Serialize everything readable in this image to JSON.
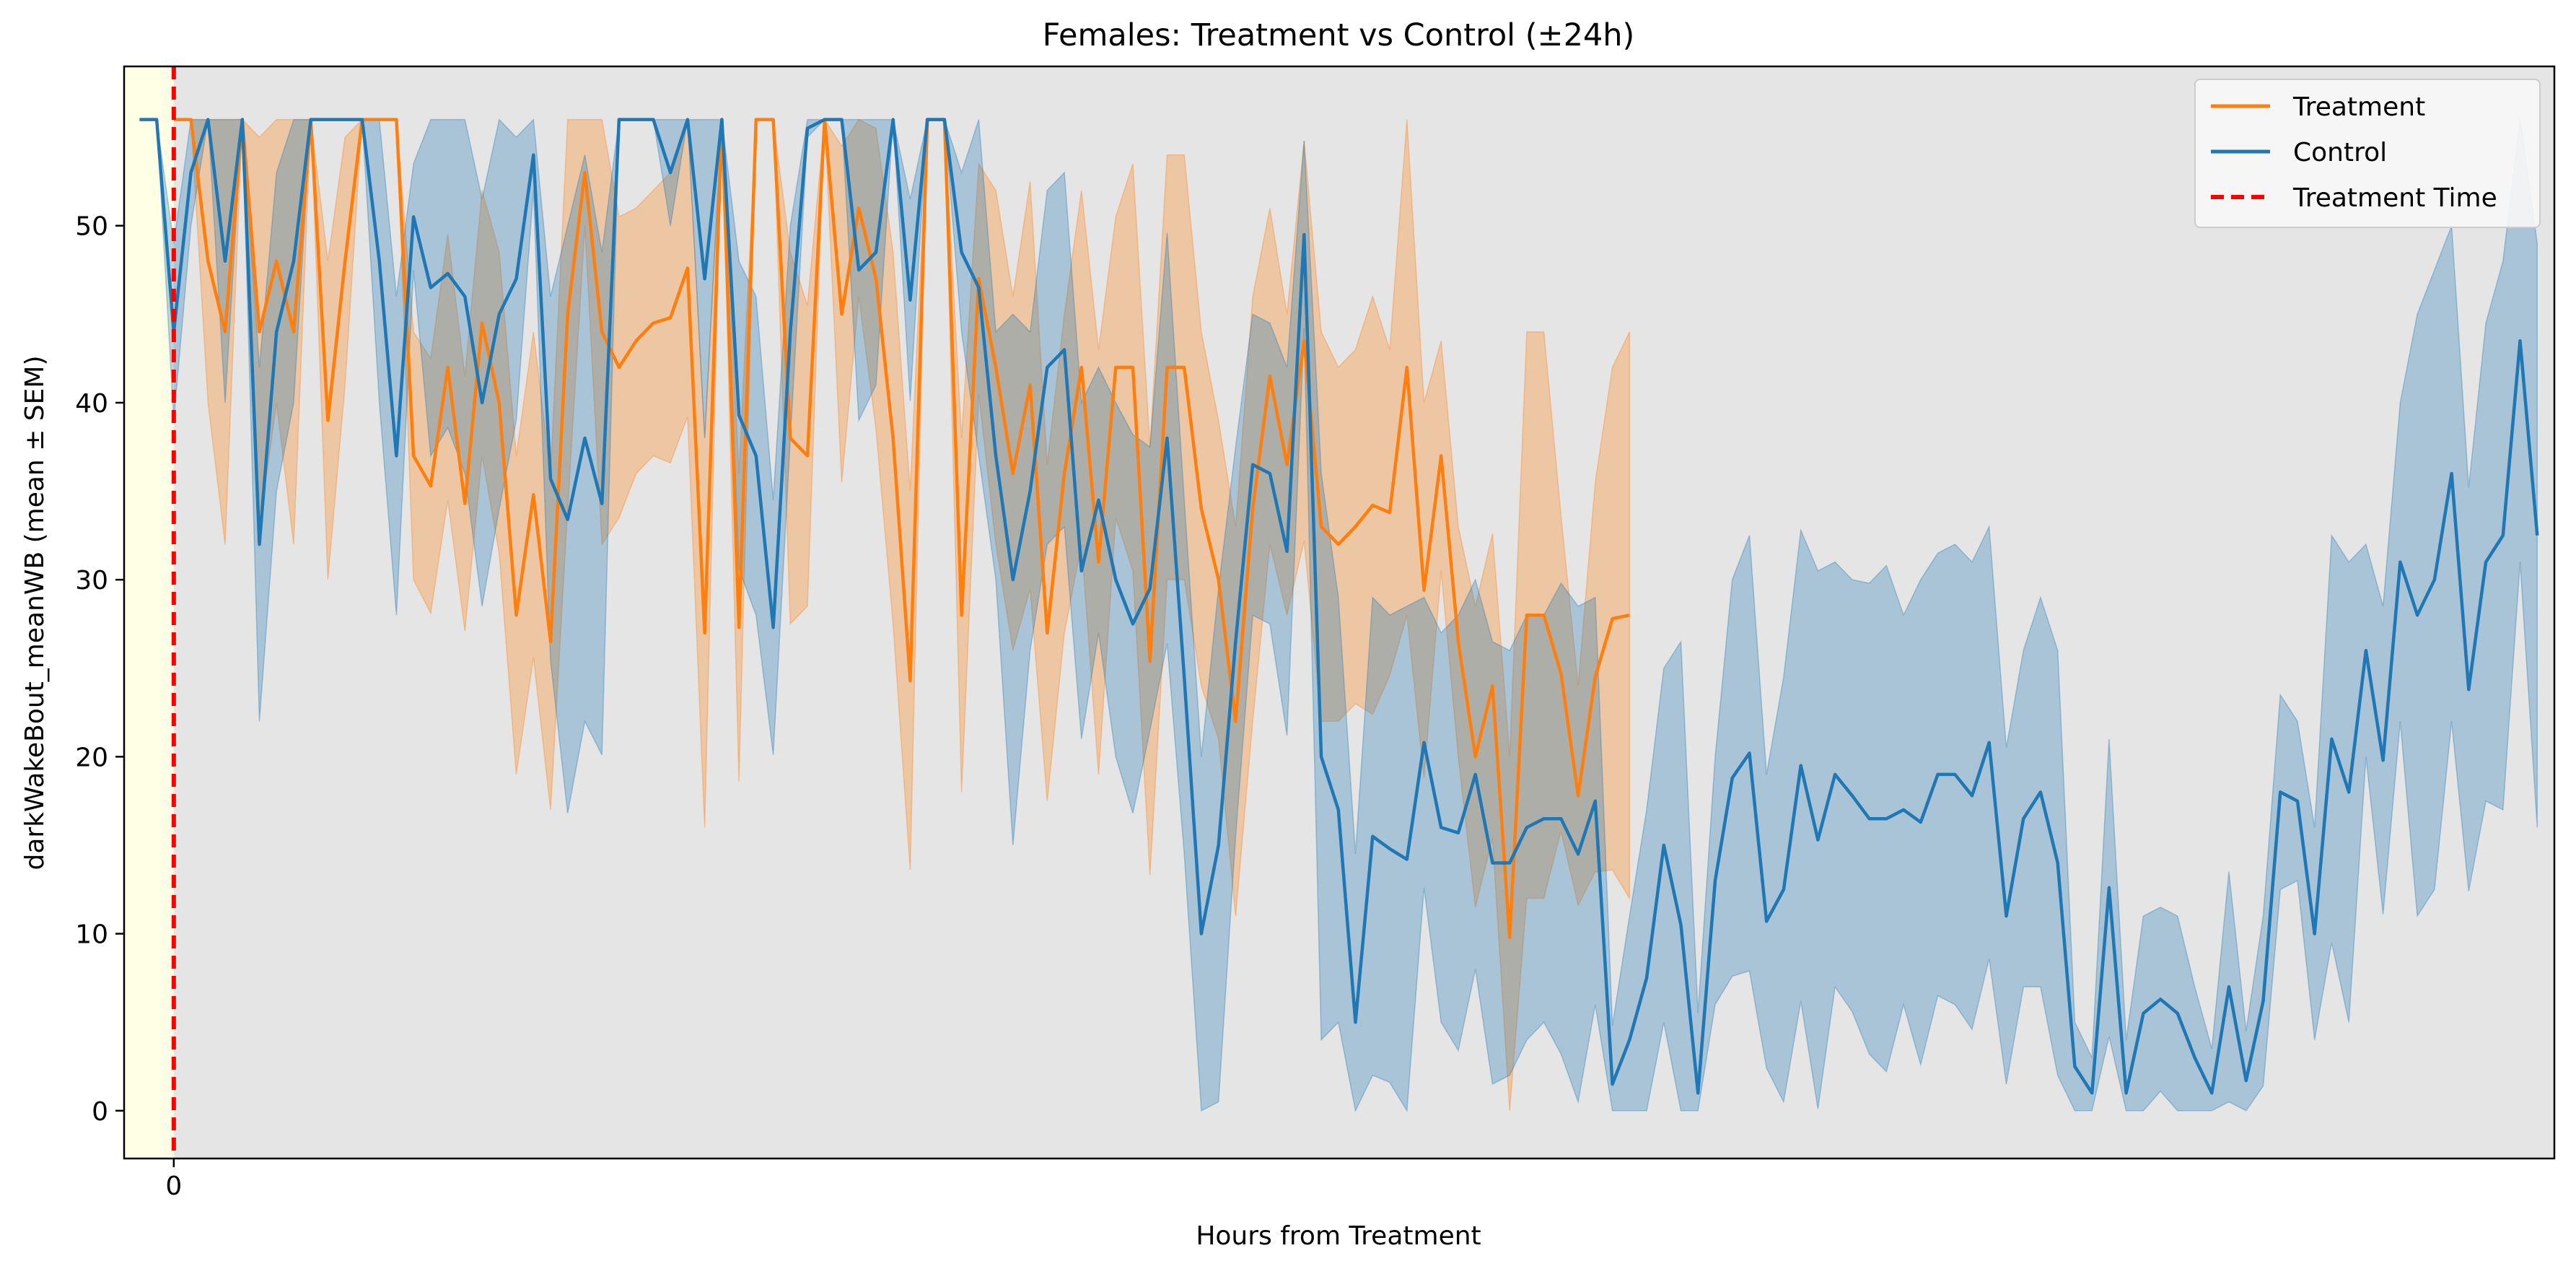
{
  "chart_data": {
    "type": "line",
    "title": "Females: Treatment vs Control (±24h)",
    "xlabel": "Hours from Treatment",
    "ylabel": "darkWakeBout_meanWB (mean ± SEM)",
    "x_ticks": [
      0
    ],
    "ylim": [
      -2.7,
      59
    ],
    "yticks": [
      0,
      10,
      20,
      30,
      40,
      50
    ],
    "xlim": [
      -2.9,
      139
    ],
    "x": [
      -3,
      -2,
      -1,
      0,
      1,
      2,
      3,
      4,
      5,
      6,
      7,
      8,
      9,
      10,
      11,
      12,
      13,
      14,
      15,
      16,
      17,
      18,
      19,
      20,
      21,
      22,
      23,
      24,
      25,
      26,
      27,
      28,
      29,
      30,
      31,
      32,
      33,
      34,
      35,
      36,
      37,
      38,
      39,
      40,
      41,
      42,
      43,
      44,
      45,
      46,
      47,
      48,
      49,
      50,
      51,
      52,
      53,
      54,
      55,
      56,
      57,
      58,
      59,
      60,
      61,
      62,
      63,
      64,
      65,
      66,
      67,
      68,
      69,
      70,
      71,
      72,
      73,
      74,
      75,
      76,
      77,
      78,
      79,
      80,
      81,
      82,
      83,
      84,
      85,
      86,
      87,
      88,
      89,
      90,
      91,
      92,
      93,
      94,
      95,
      96,
      97,
      98,
      99,
      100,
      101,
      102,
      103,
      104,
      105,
      106,
      107,
      108,
      109,
      110,
      111,
      112,
      113,
      114,
      115,
      116,
      117,
      118,
      119,
      120,
      121,
      122,
      123,
      124,
      125,
      126,
      127,
      128,
      129,
      130,
      131,
      132,
      133,
      134,
      135,
      136,
      137,
      138,
      139
    ],
    "series": [
      {
        "name": "Control",
        "color": "#1f77b4",
        "mean": [
          56,
          56,
          56,
          44,
          53,
          56,
          48,
          56,
          32,
          44,
          48,
          56,
          56,
          56,
          56,
          48,
          37,
          50.5,
          46.5,
          47.3,
          46,
          40,
          45,
          47,
          54,
          35.7,
          33.4,
          38,
          34.3,
          56,
          56,
          56,
          53,
          56,
          47,
          56,
          39.3,
          37,
          27.3,
          44,
          55.5,
          56,
          56,
          47.5,
          48.5,
          56,
          45.8,
          56,
          56,
          48.5,
          46.5,
          37,
          30,
          35,
          42,
          43,
          30.5,
          34.5,
          30,
          27.5,
          29.5,
          38,
          24.5,
          10,
          15,
          26.5,
          36.5,
          36,
          31.6,
          49.5,
          20,
          17,
          5,
          15.5,
          14.8,
          14.2,
          20.8,
          16,
          15.7,
          19,
          14,
          14,
          16,
          16.5,
          16.5,
          14.5,
          17.5,
          1.5,
          4,
          7.5,
          15,
          10.5,
          1,
          13,
          18.8,
          20.2,
          10.7,
          12.5,
          19.5,
          15.3,
          19,
          17.8,
          16.5,
          16.5,
          17,
          16.3,
          19,
          19,
          17.8,
          20.8,
          11,
          16.5,
          18,
          14,
          2.5,
          1,
          12.6,
          1,
          5.5,
          6.3,
          5.5,
          3,
          1,
          7,
          1.7,
          6.2,
          18,
          17.5,
          10,
          21,
          18,
          26,
          19.8,
          31,
          28,
          30,
          36,
          23.8,
          31,
          32.5,
          43.5,
          32.5
        ],
        "upper": [
          56,
          56,
          56,
          49,
          56,
          56,
          56,
          56,
          42,
          53,
          56,
          56,
          56,
          56,
          56,
          56,
          46,
          53.5,
          56,
          56,
          56,
          51.5,
          56,
          55,
          56,
          46,
          50,
          54,
          48.5,
          56,
          56,
          56,
          56,
          56,
          56,
          56,
          48,
          46,
          34.5,
          50,
          56,
          56,
          56,
          56,
          56,
          56,
          51.5,
          56,
          56,
          53,
          56,
          44,
          45,
          44,
          52,
          53,
          40,
          42,
          40,
          38.2,
          37.5,
          49.6,
          34.5,
          20,
          29.5,
          37.5,
          45,
          44.5,
          42,
          54.8,
          36,
          29,
          14.5,
          29,
          28,
          28.5,
          29,
          27,
          28,
          30,
          26.5,
          26,
          28,
          28,
          29.8,
          28.5,
          29,
          4.8,
          11,
          17,
          25,
          26.5,
          5.5,
          20,
          30,
          32.5,
          19,
          24.5,
          32.8,
          30.5,
          31,
          30,
          29.8,
          30.8,
          28,
          30,
          31.5,
          32,
          31,
          33,
          20.5,
          26,
          29,
          26,
          5,
          3,
          21,
          4,
          11,
          11.5,
          11,
          7,
          3.5,
          13.5,
          4.5,
          11,
          23.5,
          22,
          16,
          32.5,
          31,
          32,
          28.5,
          40,
          45,
          47.5,
          50,
          35.2,
          44.5,
          48,
          56,
          49
        ]
      },
      {
        "name": "Treatment",
        "color": "#ff7f0e",
        "mean": [
          null,
          null,
          null,
          56,
          56,
          48,
          44,
          56,
          44,
          48,
          44,
          56,
          39,
          48,
          56,
          56,
          56,
          37,
          35.3,
          42,
          34.3,
          44.5,
          40,
          28,
          34.8,
          26.5,
          45,
          53,
          44,
          42,
          43.5,
          44.5,
          44.8,
          47.6,
          27,
          56,
          27.3,
          56,
          56,
          38,
          37,
          56,
          45,
          51,
          47,
          38,
          24.3,
          56,
          56,
          28,
          47,
          42,
          36,
          41,
          27,
          36,
          42,
          31,
          42,
          42,
          25.4,
          42,
          42,
          34,
          30,
          22,
          34,
          41.5,
          36.5,
          43.5,
          33,
          32,
          33,
          34.2,
          33.8,
          42,
          29.4,
          37,
          26.5,
          20,
          24,
          9.8,
          28,
          28,
          24.7,
          17.8,
          24.5,
          27.8,
          28
        ],
        "upper": [
          null,
          null,
          null,
          56,
          56,
          56,
          56,
          56,
          55,
          56,
          56,
          56,
          48,
          55,
          56,
          56,
          56,
          44,
          42.5,
          49.5,
          41.5,
          52,
          48.5,
          37,
          44,
          36,
          56,
          56,
          56,
          50.5,
          51,
          52,
          53,
          56,
          38,
          56,
          36,
          56,
          56,
          48.5,
          45.5,
          56,
          54.5,
          56,
          55.5,
          48.5,
          35,
          56,
          56,
          38,
          53.5,
          52,
          46,
          52.5,
          36.5,
          45,
          52,
          43,
          50.5,
          53.5,
          37.5,
          54,
          54,
          44,
          39,
          33,
          46,
          51,
          45,
          54.8,
          44,
          42,
          43,
          46,
          43,
          56,
          40,
          43.5,
          33,
          28.5,
          32.6,
          20,
          44,
          44,
          33.6,
          24,
          35.5,
          42,
          44
        ]
      }
    ],
    "treatment_time": 0,
    "legend_position": "top-right",
    "grid": false
  },
  "legend": {
    "treatment": "Treatment",
    "control": "Control",
    "treatment_time": "Treatment Time"
  },
  "colors": {
    "treatment": "#ff7f0e",
    "control": "#1f77b4",
    "treatment_line": "#ff0000",
    "plot_background": "#e5e5e5",
    "pre_treatment_region": "#ffffe6"
  }
}
